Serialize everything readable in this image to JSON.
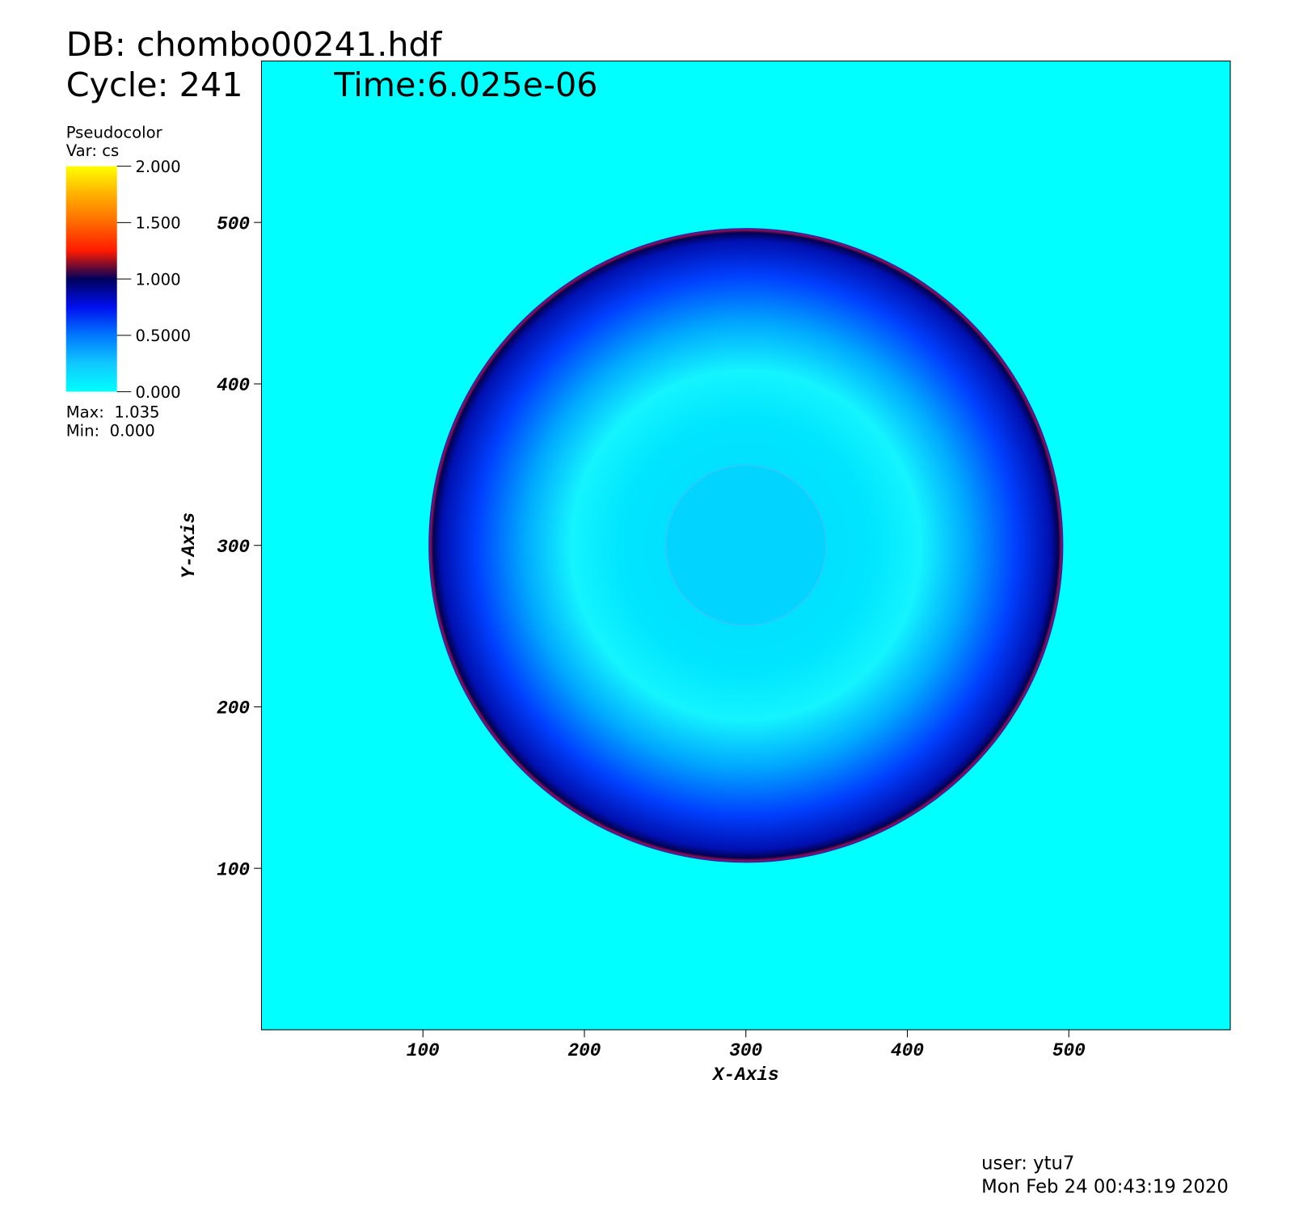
{
  "chart_data": {
    "type": "pseudocolor",
    "title": "DB: chombo00241.hdf",
    "cycle": "Cycle: 241",
    "time": "Time:6.025e-06",
    "plot_name": "Pseudocolor",
    "variable": "Var: cs",
    "max_text": "Max:  1.035",
    "min_text": "Min:  0.000",
    "x_label": "X-Axis",
    "y_label": "Y-Axis",
    "xlim": [
      0,
      600
    ],
    "ylim": [
      0,
      600
    ],
    "xticks": [
      100,
      200,
      300,
      400,
      500
    ],
    "yticks": [
      100,
      200,
      300,
      400,
      500
    ],
    "background_color": "#00ffff",
    "colorbar": {
      "lim": [
        0,
        2
      ],
      "ticks": [
        {
          "value": 0,
          "label": "0.000"
        },
        {
          "value": 0.5,
          "label": "0.5000"
        },
        {
          "value": 1,
          "label": "1.000"
        },
        {
          "value": 1.5,
          "label": "1.500"
        },
        {
          "value": 2,
          "label": "2.000"
        }
      ],
      "colors": [
        "#00ffff",
        "#10c8ff",
        "#0078ff",
        "#0010f0",
        "#00005a",
        "#ff1a00",
        "#ff6a00",
        "#ffb000",
        "#ffff00"
      ]
    },
    "user": "user: ytu7",
    "date": "Mon Feb 24 00:43:19 2020"
  }
}
